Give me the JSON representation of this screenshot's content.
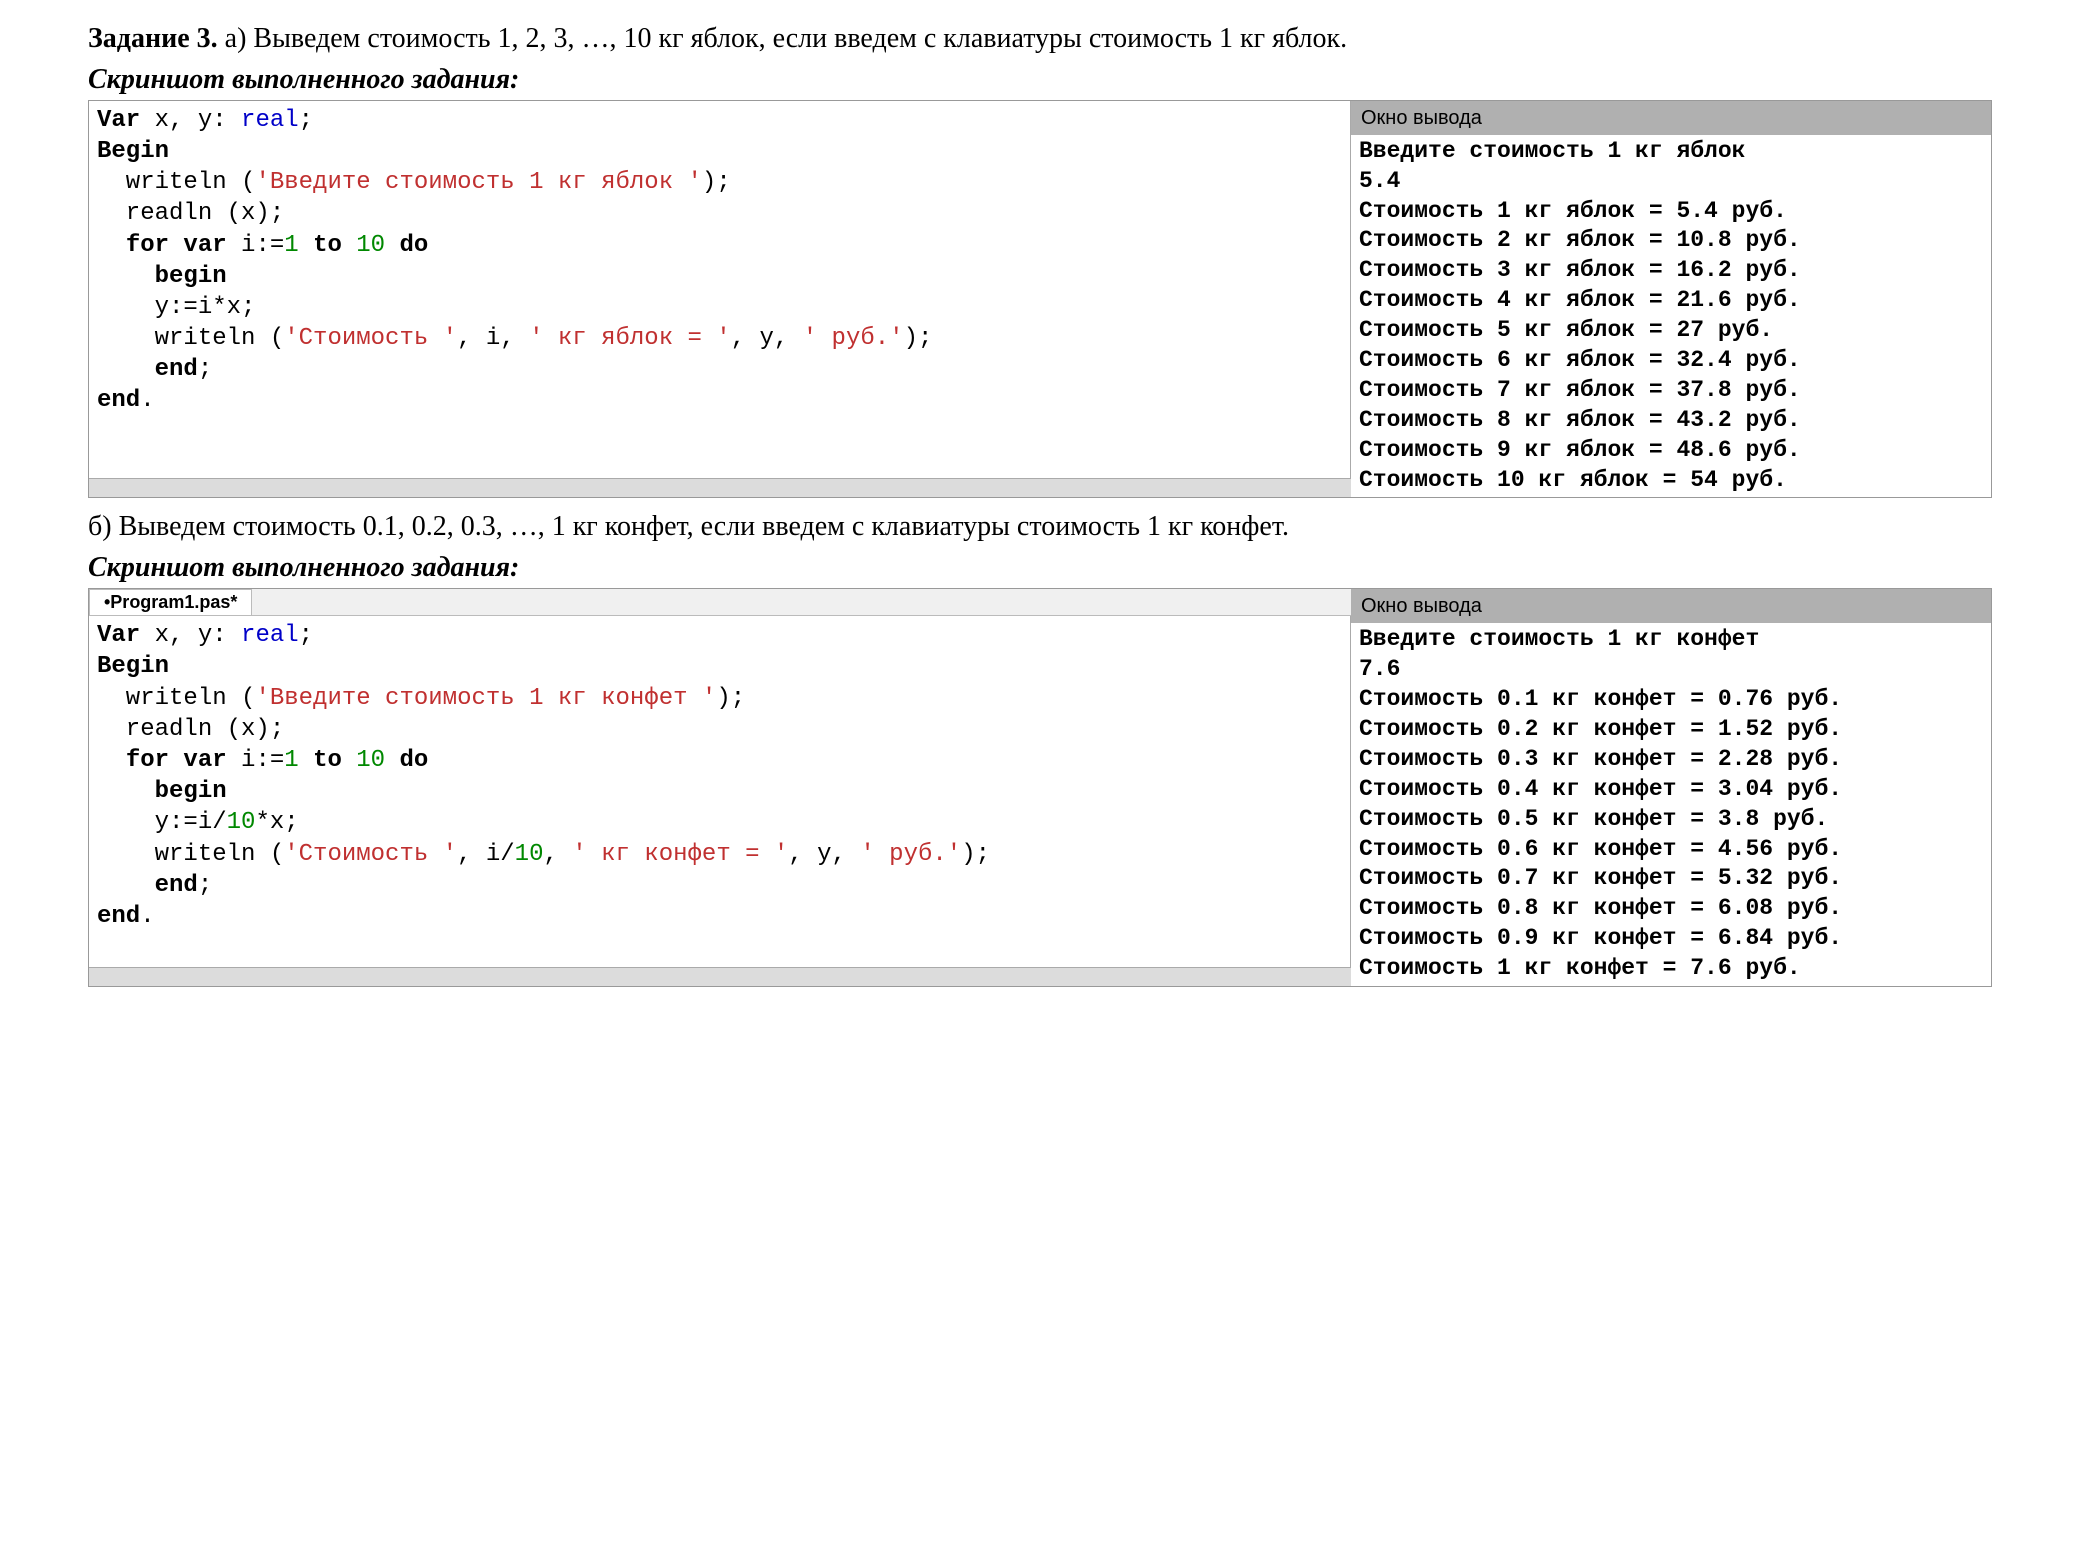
{
  "task3": {
    "title": "Задание 3.",
    "part_a": " а) Выведем стоимость 1, 2, 3, …, 10 кг яблок, если введем с клавиатуры стоимость 1 кг яблок.",
    "part_b": "б) Выведем стоимость 0.1, 0.2, 0.3, …, 1 кг конфет, если введем с клавиатуры стоимость 1 кг конфет.",
    "screenshot_label": "Скриншот выполненного задания:"
  },
  "editor_a": {
    "code": {
      "l1": {
        "a": "Var",
        "b": " x, y: ",
        "c": "real",
        "d": ";"
      },
      "l2": {
        "a": "Begin"
      },
      "l3": {
        "a": "  writeln (",
        "b": "'Введите стоимость 1 кг яблок '",
        "c": ");"
      },
      "l4": {
        "a": "  readln (x);"
      },
      "l5": {
        "a": "  ",
        "b": "for var",
        "c": " i:=",
        "d": "1",
        "e": " ",
        "f": "to",
        "g": " ",
        "h": "10",
        "i": " ",
        "j": "do"
      },
      "l6": {
        "a": "    ",
        "b": "begin"
      },
      "l7": {
        "a": "    y:=i*x;"
      },
      "l8": {
        "a": "    writeln (",
        "b": "'Стоимость '",
        "c": ", i, ",
        "d": "' кг яблок = '",
        "e": ", y, ",
        "f": "' руб.'",
        "g": ");"
      },
      "l9": {
        "a": "    ",
        "b": "end",
        "c": ";"
      },
      "l10": {
        "a": "end",
        "b": "."
      }
    },
    "output": {
      "title": "Окно вывода",
      "lines": [
        "Введите стоимость 1 кг яблок ",
        "5.4",
        "Стоимость 1 кг яблок = 5.4 руб.",
        "Стоимость 2 кг яблок = 10.8 руб.",
        "Стоимость 3 кг яблок = 16.2 руб.",
        "Стоимость 4 кг яблок = 21.6 руб.",
        "Стоимость 5 кг яблок = 27 руб.",
        "Стоимость 6 кг яблок = 32.4 руб.",
        "Стоимость 7 кг яблок = 37.8 руб.",
        "Стоимость 8 кг яблок = 43.2 руб.",
        "Стоимость 9 кг яблок = 48.6 руб.",
        "Стоимость 10 кг яблок = 54 руб."
      ]
    }
  },
  "editor_b": {
    "tab": "•Program1.pas*",
    "code": {
      "l1": {
        "a": "Var",
        "b": " x, y: ",
        "c": "real",
        "d": ";"
      },
      "l2": {
        "a": "Begin"
      },
      "l3": {
        "a": "  writeln (",
        "b": "'Введите стоимость 1 кг конфет '",
        "c": ");"
      },
      "l4": {
        "a": "  readln (x);"
      },
      "l5": {
        "a": "  ",
        "b": "for var",
        "c": " i:=",
        "d": "1",
        "e": " ",
        "f": "to",
        "g": " ",
        "h": "10",
        "i": " ",
        "j": "do"
      },
      "l6": {
        "a": "    ",
        "b": "begin"
      },
      "l7": {
        "a": "    y:=i/",
        "b": "10",
        "c": "*x;"
      },
      "l8": {
        "a": "    writeln (",
        "b": "'Стоимость '",
        "c": ", i/",
        "d": "10",
        "e": ", ",
        "f": "' кг конфет = '",
        "g": ", y, ",
        "h": "' руб.'",
        "i": ");"
      },
      "l9": {
        "a": "    ",
        "b": "end",
        "c": ";"
      },
      "l10": {
        "a": "end",
        "b": "."
      }
    },
    "output": {
      "title": "Окно вывода",
      "lines": [
        "Введите стоимость 1 кг конфет ",
        "7.6",
        "Стоимость 0.1 кг конфет = 0.76 руб.",
        "Стоимость 0.2 кг конфет = 1.52 руб.",
        "Стоимость 0.3 кг конфет = 2.28 руб.",
        "Стоимость 0.4 кг конфет = 3.04 руб.",
        "Стоимость 0.5 кг конфет = 3.8 руб.",
        "Стоимость 0.6 кг конфет = 4.56 руб.",
        "Стоимость 0.7 кг конфет = 5.32 руб.",
        "Стоимость 0.8 кг конфет = 6.08 руб.",
        "Стоимость 0.9 кг конфет = 6.84 руб.",
        "Стоимость 1 кг конфет = 7.6 руб."
      ]
    }
  },
  "colors": {
    "keyword": "#000000",
    "type": "#0000c8",
    "number": "#008800",
    "string": "#c03030",
    "output_title_bg": "#b0b0b0",
    "bg": "#ffffff"
  }
}
